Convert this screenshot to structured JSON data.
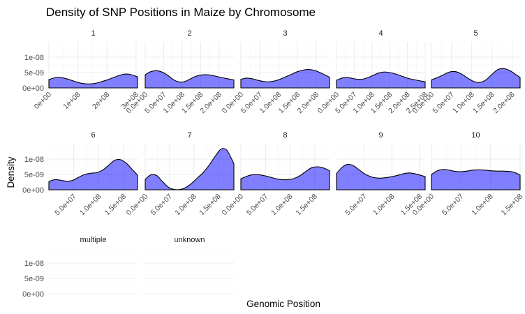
{
  "chart_data": {
    "type": "area",
    "title": "Density of SNP Positions in Maize by Chromosome",
    "xlabel": "Genomic Position",
    "ylabel": "Density",
    "ylim": [
      0,
      1.5e-08
    ],
    "y_ticks": [
      {
        "value": 0,
        "label": "0e+00"
      },
      {
        "value": 5e-09,
        "label": "5e-09"
      },
      {
        "value": 1e-08,
        "label": "1e-08"
      }
    ],
    "fill_color": "#0000ff",
    "fill_opacity": 0.5,
    "line_color": "#000000",
    "grid": true,
    "facets": [
      {
        "label": "1",
        "row": 0,
        "col": 0,
        "xlim": [
          0,
          305000000.0
        ],
        "x_ticks": [
          {
            "value": 0,
            "label": "0e+00"
          },
          {
            "value": 100000000.0,
            "label": "1e+08"
          },
          {
            "value": 200000000.0,
            "label": "2e+08"
          },
          {
            "value": 300000000.0,
            "label": "3e+08"
          }
        ],
        "x": [
          0,
          20000000.0,
          40000000.0,
          60000000.0,
          80000000.0,
          100000000.0,
          120000000.0,
          140000000.0,
          160000000.0,
          180000000.0,
          200000000.0,
          220000000.0,
          240000000.0,
          260000000.0,
          280000000.0,
          305000000.0
        ],
        "density": [
          2.7e-09,
          3.3e-09,
          3.4e-09,
          3e-09,
          2.4e-09,
          1.8e-09,
          1.4e-09,
          1.3e-09,
          1.5e-09,
          2e-09,
          2.6e-09,
          3.3e-09,
          4e-09,
          4.5e-09,
          4.4e-09,
          3.6e-09
        ]
      },
      {
        "label": "2",
        "row": 0,
        "col": 1,
        "xlim": [
          0,
          240000000.0
        ],
        "x_ticks": [
          {
            "value": 0,
            "label": "0.0e+00"
          },
          {
            "value": 50000000.0,
            "label": "5.0e+07"
          },
          {
            "value": 100000000.0,
            "label": "1.0e+08"
          },
          {
            "value": 150000000.0,
            "label": "1.5e+08"
          },
          {
            "value": 200000000.0,
            "label": "2.0e+08"
          }
        ],
        "x": [
          0,
          15000000.0,
          30000000.0,
          45000000.0,
          60000000.0,
          75000000.0,
          90000000.0,
          105000000.0,
          120000000.0,
          135000000.0,
          150000000.0,
          165000000.0,
          180000000.0,
          195000000.0,
          210000000.0,
          240000000.0
        ],
        "density": [
          4.3e-09,
          5.3e-09,
          5.6e-09,
          5.2e-09,
          4.2e-09,
          2.8e-09,
          2e-09,
          2e-09,
          2.8e-09,
          3.7e-09,
          4.2e-09,
          4.3e-09,
          4.1e-09,
          3.7e-09,
          3.3e-09,
          2.6e-09
        ]
      },
      {
        "label": "3",
        "row": 0,
        "col": 2,
        "xlim": [
          0,
          235000000.0
        ],
        "x_ticks": [
          {
            "value": 0,
            "label": "0.0e+00"
          },
          {
            "value": 50000000.0,
            "label": "5.0e+07"
          },
          {
            "value": 100000000.0,
            "label": "1.0e+08"
          },
          {
            "value": 150000000.0,
            "label": "1.5e+08"
          },
          {
            "value": 200000000.0,
            "label": "2.0e+08"
          }
        ],
        "x": [
          0,
          15000000.0,
          30000000.0,
          45000000.0,
          60000000.0,
          75000000.0,
          90000000.0,
          105000000.0,
          120000000.0,
          135000000.0,
          150000000.0,
          165000000.0,
          180000000.0,
          195000000.0,
          210000000.0,
          235000000.0
        ],
        "density": [
          2.8e-09,
          3.2e-09,
          3e-09,
          2.5e-09,
          2.1e-09,
          2e-09,
          2.3e-09,
          2.9e-09,
          3.7e-09,
          4.5e-09,
          5.3e-09,
          5.8e-09,
          6e-09,
          5.7e-09,
          5e-09,
          3.5e-09
        ]
      },
      {
        "label": "4",
        "row": 0,
        "col": 3,
        "xlim": [
          0,
          250000000.0
        ],
        "x_ticks": [
          {
            "value": 0,
            "label": "0.0e+00"
          },
          {
            "value": 50000000.0,
            "label": "5.0e+07"
          },
          {
            "value": 100000000.0,
            "label": "1.0e+08"
          },
          {
            "value": 150000000.0,
            "label": "1.5e+08"
          },
          {
            "value": 200000000.0,
            "label": "2.0e+08"
          },
          {
            "value": 250000000.0,
            "label": "2.5e+08"
          }
        ],
        "x": [
          0,
          15000000.0,
          30000000.0,
          45000000.0,
          60000000.0,
          75000000.0,
          90000000.0,
          105000000.0,
          120000000.0,
          135000000.0,
          150000000.0,
          165000000.0,
          180000000.0,
          195000000.0,
          210000000.0,
          250000000.0
        ],
        "density": [
          2.5e-09,
          3.2e-09,
          3.4e-09,
          3.1e-09,
          2.8e-09,
          2.9e-09,
          3.4e-09,
          4.2e-09,
          4.9e-09,
          5.2e-09,
          5e-09,
          4.6e-09,
          4e-09,
          3.4e-09,
          2.9e-09,
          2e-09
        ]
      },
      {
        "label": "5",
        "row": 0,
        "col": 4,
        "xlim": [
          0,
          220000000.0
        ],
        "x_ticks": [
          {
            "value": 0,
            "label": "0.0e+00"
          },
          {
            "value": 50000000.0,
            "label": "5.0e+07"
          },
          {
            "value": 100000000.0,
            "label": "1.0e+08"
          },
          {
            "value": 150000000.0,
            "label": "1.5e+08"
          },
          {
            "value": 200000000.0,
            "label": "2.0e+08"
          }
        ],
        "x": [
          0,
          15000000.0,
          30000000.0,
          45000000.0,
          60000000.0,
          75000000.0,
          90000000.0,
          105000000.0,
          120000000.0,
          135000000.0,
          150000000.0,
          165000000.0,
          180000000.0,
          195000000.0,
          210000000.0,
          220000000.0
        ],
        "density": [
          2.6e-09,
          3.4e-09,
          4.3e-09,
          5.2e-09,
          5.3e-09,
          4.5e-09,
          3.2e-09,
          2.1e-09,
          1.8e-09,
          2.6e-09,
          4.4e-09,
          6e-09,
          6.3e-09,
          5.6e-09,
          4.3e-09,
          3.4e-09
        ]
      },
      {
        "label": "6",
        "row": 1,
        "col": 0,
        "xlim": [
          0,
          178000000.0
        ],
        "x_ticks": [
          {
            "value": 50000000.0,
            "label": "5.0e+07"
          },
          {
            "value": 100000000.0,
            "label": "1.0e+08"
          },
          {
            "value": 150000000.0,
            "label": "1.5e+08"
          }
        ],
        "x": [
          0,
          12000000.0,
          24000000.0,
          36000000.0,
          48000000.0,
          60000000.0,
          72000000.0,
          84000000.0,
          96000000.0,
          108000000.0,
          120000000.0,
          132000000.0,
          144000000.0,
          156000000.0,
          168000000.0,
          178000000.0
        ],
        "density": [
          2.7e-09,
          3.3e-09,
          3.1e-09,
          2.8e-09,
          3.1e-09,
          4.1e-09,
          5e-09,
          5.4e-09,
          5.6e-09,
          6.4e-09,
          8e-09,
          9.6e-09,
          9.8e-09,
          8.6e-09,
          6.5e-09,
          4.8e-09
        ]
      },
      {
        "label": "7",
        "row": 1,
        "col": 1,
        "xlim": [
          0,
          182000000.0
        ],
        "x_ticks": [
          {
            "value": 0,
            "label": "0.0e+00"
          },
          {
            "value": 50000000.0,
            "label": "5.0e+07"
          },
          {
            "value": 100000000.0,
            "label": "1.0e+08"
          },
          {
            "value": 150000000.0,
            "label": "1.5e+08"
          }
        ],
        "x": [
          0,
          12000000.0,
          24000000.0,
          36000000.0,
          48000000.0,
          60000000.0,
          72000000.0,
          84000000.0,
          96000000.0,
          108000000.0,
          120000000.0,
          132000000.0,
          144000000.0,
          156000000.0,
          168000000.0,
          182000000.0
        ],
        "density": [
          3.4e-09,
          4.9e-09,
          4.6e-09,
          2.6e-09,
          8e-10,
          1e-10,
          1e-10,
          8e-10,
          2.2e-09,
          4e-09,
          5.8e-09,
          8.2e-09,
          1.1e-08,
          1.33e-08,
          1.28e-08,
          8.5e-09
        ]
      },
      {
        "label": "8",
        "row": 1,
        "col": 2,
        "xlim": [
          0,
          180000000.0
        ],
        "x_ticks": [
          {
            "value": 0,
            "label": "0.0e+00"
          },
          {
            "value": 50000000.0,
            "label": "5.0e+07"
          },
          {
            "value": 100000000.0,
            "label": "1.0e+08"
          },
          {
            "value": 150000000.0,
            "label": "1.5e+08"
          }
        ],
        "x": [
          0,
          12000000.0,
          24000000.0,
          36000000.0,
          48000000.0,
          60000000.0,
          72000000.0,
          84000000.0,
          96000000.0,
          108000000.0,
          120000000.0,
          132000000.0,
          144000000.0,
          156000000.0,
          168000000.0,
          180000000.0
        ],
        "density": [
          3.6e-09,
          4.4e-09,
          4.9e-09,
          4.9e-09,
          4.6e-09,
          4.1e-09,
          3.6e-09,
          3.3e-09,
          3.3e-09,
          3.7e-09,
          4.6e-09,
          6e-09,
          7.2e-09,
          7.5e-09,
          7.1e-09,
          6.2e-09
        ]
      },
      {
        "label": "9",
        "row": 1,
        "col": 3,
        "xlim": [
          0,
          160000000.0
        ],
        "x_ticks": [
          {
            "value": 50000000.0,
            "label": "5.0e+07"
          },
          {
            "value": 100000000.0,
            "label": "1.0e+08"
          },
          {
            "value": 150000000.0,
            "label": "1.5e+08"
          }
        ],
        "x": [
          0,
          10000000.0,
          20000000.0,
          30000000.0,
          40000000.0,
          50000000.0,
          60000000.0,
          70000000.0,
          80000000.0,
          90000000.0,
          100000000.0,
          110000000.0,
          120000000.0,
          130000000.0,
          140000000.0,
          160000000.0
        ],
        "density": [
          5.3e-09,
          7.3e-09,
          8.3e-09,
          7.9e-09,
          6.6e-09,
          5.3e-09,
          4.4e-09,
          3.9e-09,
          3.8e-09,
          4e-09,
          4.3e-09,
          4.7e-09,
          5.2e-09,
          5.5e-09,
          5.3e-09,
          4.3e-09
        ]
      },
      {
        "label": "10",
        "row": 1,
        "col": 4,
        "xlim": [
          0,
          150000000.0
        ],
        "x_ticks": [
          {
            "value": 0,
            "label": "0.0e+00"
          },
          {
            "value": 50000000.0,
            "label": "5.0e+07"
          },
          {
            "value": 100000000.0,
            "label": "1.0e+08"
          },
          {
            "value": 150000000.0,
            "label": "1.5e+08"
          }
        ],
        "x": [
          0,
          10000000.0,
          20000000.0,
          30000000.0,
          40000000.0,
          50000000.0,
          60000000.0,
          70000000.0,
          80000000.0,
          90000000.0,
          100000000.0,
          110000000.0,
          120000000.0,
          130000000.0,
          140000000.0,
          150000000.0
        ],
        "density": [
          5e-09,
          6.2e-09,
          6.6e-09,
          6.4e-09,
          6e-09,
          5.9e-09,
          6.1e-09,
          6.4e-09,
          6.5e-09,
          6.4e-09,
          6.2e-09,
          6.1e-09,
          6.1e-09,
          6e-09,
          5.7e-09,
          4.8e-09
        ]
      },
      {
        "label": "multiple",
        "row": 2,
        "col": 0,
        "empty": true
      },
      {
        "label": "unknown",
        "row": 2,
        "col": 1,
        "empty": true
      }
    ]
  }
}
